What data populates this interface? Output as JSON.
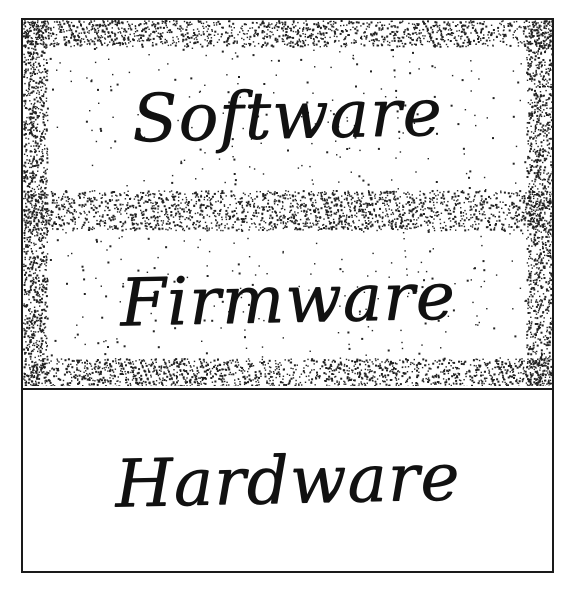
{
  "diagram": {
    "layers": [
      {
        "label": "Software",
        "pattern": "speckled"
      },
      {
        "label": "Firmware",
        "pattern": "speckled"
      },
      {
        "label": "Hardware",
        "pattern": "plain"
      }
    ],
    "colors": {
      "ink": "#111111",
      "border": "#1a1a1a",
      "background": "#ffffff"
    }
  }
}
